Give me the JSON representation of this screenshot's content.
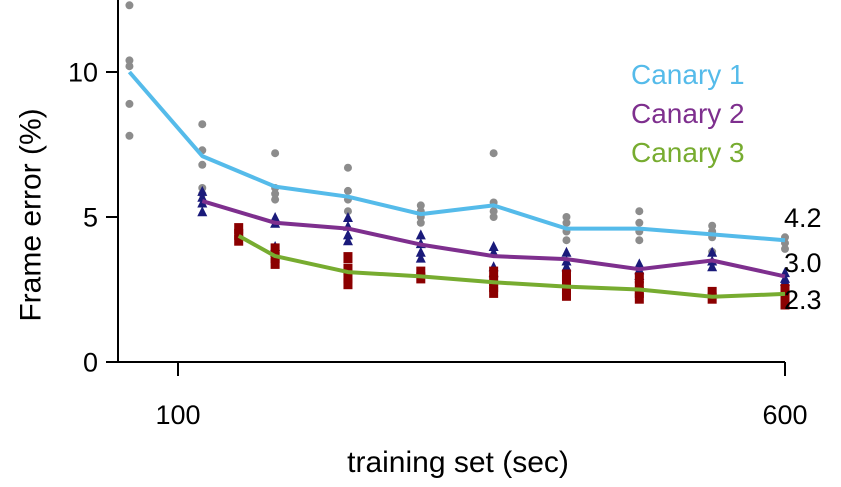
{
  "chart_data": {
    "type": "line",
    "xlabel": "training set (sec)",
    "ylabel": "Frame error (%)",
    "xlim": [
      50,
      610
    ],
    "ylim": [
      0,
      12.5
    ],
    "xticks": [
      100,
      600
    ],
    "xtick_labels": [
      "100",
      "600"
    ],
    "yticks": [
      0,
      5,
      10
    ],
    "ytick_labels": [
      "0",
      "5",
      "10"
    ],
    "legend_position": "top-right",
    "series": [
      {
        "name": "Canary 1",
        "color": "#55bbea",
        "marker": "circle",
        "marker_color": "#8c8c8c",
        "x": [
          60,
          120,
          180,
          240,
          300,
          360,
          420,
          480,
          540,
          600
        ],
        "y": [
          10.0,
          7.1,
          6.05,
          5.7,
          5.1,
          5.4,
          4.6,
          4.6,
          4.4,
          4.2
        ],
        "points": [
          [
            60,
            12.3
          ],
          [
            60,
            10.4
          ],
          [
            60,
            10.2
          ],
          [
            60,
            8.9
          ],
          [
            60,
            7.8
          ],
          [
            120,
            8.2
          ],
          [
            120,
            7.3
          ],
          [
            120,
            6.8
          ],
          [
            120,
            6.0
          ],
          [
            120,
            5.8
          ],
          [
            180,
            7.2
          ],
          [
            180,
            6.0
          ],
          [
            180,
            5.8
          ],
          [
            180,
            5.6
          ],
          [
            240,
            6.7
          ],
          [
            240,
            5.9
          ],
          [
            240,
            5.6
          ],
          [
            240,
            5.2
          ],
          [
            300,
            5.4
          ],
          [
            300,
            5.2
          ],
          [
            300,
            5.0
          ],
          [
            300,
            4.8
          ],
          [
            360,
            7.2
          ],
          [
            360,
            5.5
          ],
          [
            360,
            5.2
          ],
          [
            360,
            5.0
          ],
          [
            420,
            5.0
          ],
          [
            420,
            4.8
          ],
          [
            420,
            4.5
          ],
          [
            420,
            4.2
          ],
          [
            480,
            5.2
          ],
          [
            480,
            4.8
          ],
          [
            480,
            4.5
          ],
          [
            480,
            4.2
          ],
          [
            540,
            4.7
          ],
          [
            540,
            4.5
          ],
          [
            540,
            4.3
          ],
          [
            540,
            3.8
          ],
          [
            600,
            4.3
          ],
          [
            600,
            4.1
          ],
          [
            600,
            3.9
          ]
        ]
      },
      {
        "name": "Canary 2",
        "color": "#7e2f8e",
        "marker": "triangle",
        "marker_color": "#1a1a7a",
        "x": [
          120,
          180,
          240,
          300,
          360,
          420,
          480,
          540,
          600
        ],
        "y": [
          5.55,
          4.8,
          4.6,
          4.05,
          3.65,
          3.55,
          3.2,
          3.5,
          2.95
        ],
        "points": [
          [
            120,
            5.7
          ],
          [
            120,
            5.5
          ],
          [
            120,
            5.2
          ],
          [
            120,
            5.9
          ],
          [
            180,
            5.0
          ],
          [
            180,
            4.8
          ],
          [
            180,
            4.0
          ],
          [
            180,
            3.8
          ],
          [
            240,
            5.0
          ],
          [
            240,
            4.7
          ],
          [
            240,
            4.4
          ],
          [
            240,
            4.2
          ],
          [
            300,
            4.4
          ],
          [
            300,
            4.1
          ],
          [
            300,
            3.8
          ],
          [
            300,
            3.6
          ],
          [
            360,
            4.0
          ],
          [
            360,
            3.8
          ],
          [
            360,
            3.3
          ],
          [
            360,
            3.1
          ],
          [
            420,
            3.8
          ],
          [
            420,
            3.5
          ],
          [
            420,
            3.3
          ],
          [
            480,
            3.4
          ],
          [
            480,
            3.2
          ],
          [
            480,
            3.0
          ],
          [
            540,
            3.8
          ],
          [
            540,
            3.5
          ],
          [
            540,
            3.3
          ],
          [
            600,
            3.1
          ],
          [
            600,
            2.9
          ],
          [
            600,
            2.8
          ]
        ]
      },
      {
        "name": "Canary 3",
        "color": "#77ac30",
        "marker": "square",
        "marker_color": "#8b0000",
        "x": [
          150,
          180,
          240,
          300,
          360,
          420,
          480,
          540,
          600
        ],
        "y": [
          4.35,
          3.65,
          3.1,
          2.95,
          2.75,
          2.6,
          2.5,
          2.25,
          2.35
        ],
        "points": [
          [
            150,
            4.6
          ],
          [
            150,
            4.4
          ],
          [
            150,
            4.2
          ],
          [
            180,
            3.9
          ],
          [
            180,
            3.6
          ],
          [
            180,
            3.4
          ],
          [
            240,
            3.6
          ],
          [
            240,
            3.2
          ],
          [
            240,
            2.9
          ],
          [
            240,
            2.7
          ],
          [
            300,
            3.1
          ],
          [
            300,
            2.9
          ],
          [
            360,
            3.1
          ],
          [
            360,
            2.8
          ],
          [
            360,
            2.6
          ],
          [
            360,
            2.4
          ],
          [
            420,
            3.0
          ],
          [
            420,
            2.8
          ],
          [
            420,
            2.5
          ],
          [
            420,
            2.3
          ],
          [
            480,
            2.9
          ],
          [
            480,
            2.6
          ],
          [
            480,
            2.4
          ],
          [
            480,
            2.2
          ],
          [
            540,
            2.4
          ],
          [
            540,
            2.2
          ],
          [
            600,
            2.5
          ],
          [
            600,
            2.3
          ],
          [
            600,
            2.1
          ],
          [
            600,
            2.0
          ]
        ]
      }
    ],
    "end_labels": [
      "4.2",
      "3.0",
      "2.3"
    ],
    "end_label_values": [
      4.2,
      3.0,
      2.3
    ]
  }
}
